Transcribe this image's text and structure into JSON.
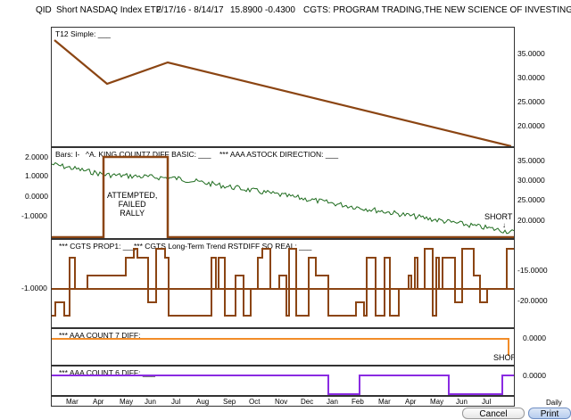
{
  "header": {
    "symbol": "QID",
    "name": "Short NASDAQ Index ETF",
    "date_range": "2/17/16 - 8/14/17",
    "price": "15.8900",
    "change": "-0.4300",
    "study": "CGTS: PROGRAM TRADING,THE NEW SCIENCE OF INVESTING"
  },
  "panes": {
    "p1": {
      "label": "T12 Simple: ___",
      "right_ticks": [
        "35.0000",
        "30.0000",
        "25.0000",
        "20.0000"
      ]
    },
    "p2": {
      "label1": "Bars: I-",
      "label2": "^A. KING COUNT7 DIFF BASIC: ___",
      "label3": "*** AAA ASTOCK DIRECTION: ___",
      "left_ticks": [
        "2.0000",
        "1.0000",
        "0.0000",
        "-1.0000"
      ],
      "right_ticks": [
        "35.0000",
        "30.0000",
        "25.0000",
        "20.0000"
      ],
      "annotation": "ATTEMPTED,\nFAILED\nRALLY",
      "annotation_l1": "ATTEMPTED,",
      "annotation_l2": "FAILED",
      "annotation_l3": "RALLY",
      "short_label": "SHORT"
    },
    "p3": {
      "label1": "*** CGTS PROP1: ___",
      "label2": "*** CGTS Long-Term Trend RSTDIFF SO REAL: ___",
      "left_ticks": [
        "-1.0000"
      ],
      "right_ticks": [
        "-15.0000",
        "-20.0000"
      ]
    },
    "p4": {
      "label": "*** AAA COUNT 7 DIFF: ___",
      "right_ticks": [
        "0.0000"
      ],
      "short_label": "SHORT"
    },
    "p5": {
      "label": "*** AAA COUNT 6 DIFF: ___",
      "right_ticks": [
        "0.0000"
      ]
    }
  },
  "xaxis": [
    "Mar",
    "Apr",
    "May",
    "Jun",
    "Jul",
    "Aug",
    "Sep",
    "Oct",
    "Nov",
    "Dec",
    "Jan",
    "Feb",
    "Mar",
    "Apr",
    "May",
    "Jun",
    "Jul"
  ],
  "buttons": {
    "cancel": "Cancel",
    "print": "Print",
    "corner_text": "Daily"
  },
  "colors": {
    "brown": "#8B4513",
    "green": "#1d6b1d",
    "orange": "#f28c28",
    "purple": "#8a2be2"
  }
}
